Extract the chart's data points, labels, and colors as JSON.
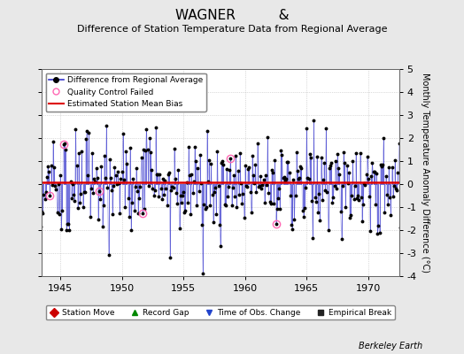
{
  "title_line1": "WAGNER          &",
  "title_line2": "Difference of Station Temperature Data from Regional Average",
  "ylabel": "Monthly Temperature Anomaly Difference (°C)",
  "xlabel_credit": "Berkeley Earth",
  "year_start": 1943,
  "year_end": 1973,
  "ylim": [
    -4,
    5
  ],
  "yticks": [
    -4,
    -3,
    -2,
    -1,
    0,
    1,
    2,
    3,
    4,
    5
  ],
  "xticks": [
    1945,
    1950,
    1955,
    1960,
    1965,
    1970
  ],
  "mean_bias": 0.08,
  "background_color": "#e8e8e8",
  "plot_bg_color": "#ffffff",
  "line_color": "#3333cc",
  "marker_color": "#000000",
  "bias_color": "#dd0000",
  "qc_color": "#ff69b4",
  "legend1_label": "Difference from Regional Average",
  "legend2_label": "Quality Control Failed",
  "legend3_label": "Estimated Station Mean Bias",
  "legend4_label": "Station Move",
  "legend5_label": "Record Gap",
  "legend6_label": "Time of Obs. Change",
  "legend7_label": "Empirical Break"
}
